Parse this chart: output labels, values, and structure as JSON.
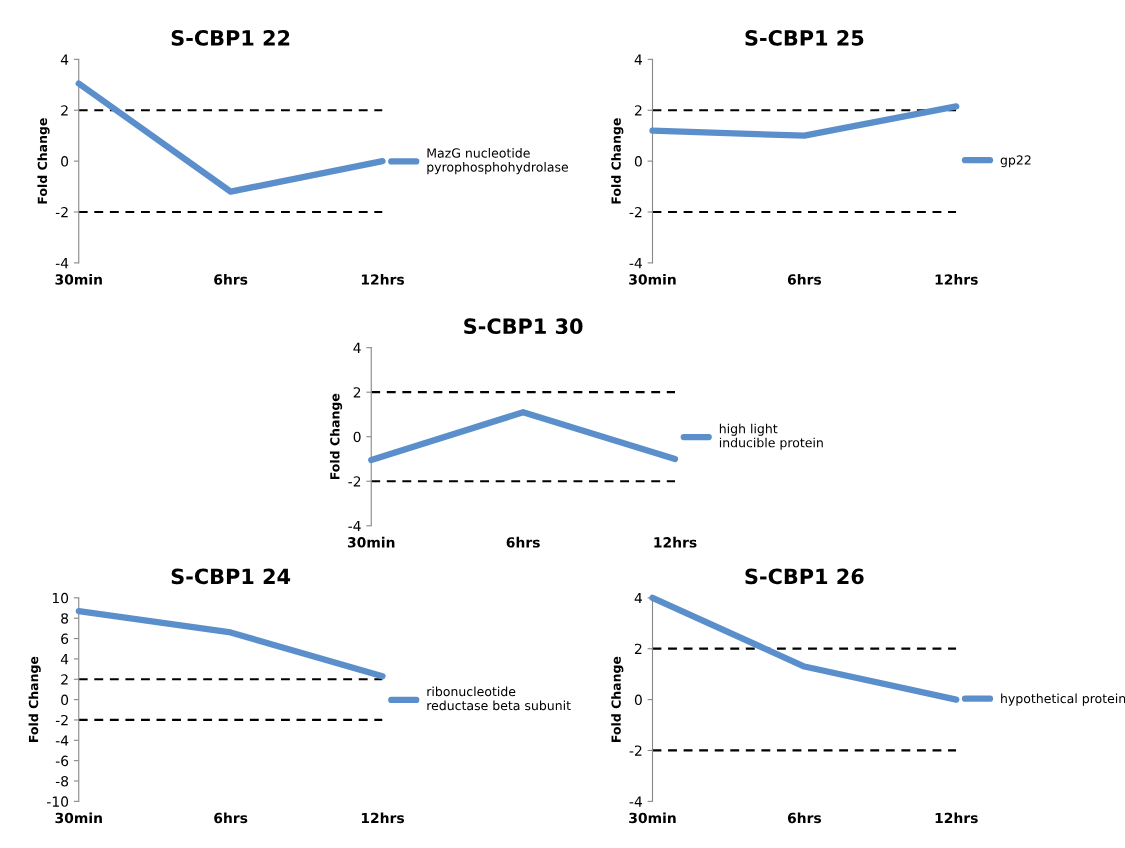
{
  "chart_data": [
    {
      "type": "line",
      "title": "S-CBP1 22",
      "ylabel": "Fold Change",
      "categories": [
        "30min",
        "6hrs",
        "12hrs"
      ],
      "ylim": [
        -4,
        4
      ],
      "yticks": [
        -4,
        -2,
        0,
        2,
        4
      ],
      "grid": false,
      "legend": "right",
      "marker": "none",
      "line_style": "solid",
      "series": [
        {
          "name": "MazG nucleotide pyrophosphohydrolase",
          "color": "#5b8fcc",
          "values": [
            3.05,
            -1.2,
            0.0
          ]
        }
      ],
      "ref_lines": [
        {
          "axis": "y",
          "value": 2,
          "color": "#000000",
          "line_style": "dashed"
        },
        {
          "axis": "y",
          "value": -2,
          "color": "#000000",
          "line_style": "dashed"
        }
      ]
    },
    {
      "type": "line",
      "title": "S-CBP1 25",
      "ylabel": "Fold Change",
      "categories": [
        "30min",
        "6hrs",
        "12hrs"
      ],
      "ylim": [
        -4,
        4
      ],
      "yticks": [
        -4,
        -2,
        0,
        2,
        4
      ],
      "grid": false,
      "legend": "right",
      "marker": "none",
      "line_style": "solid",
      "series": [
        {
          "name": "gp22",
          "color": "#5b8fcc",
          "values": [
            1.2,
            1.0,
            2.15
          ]
        }
      ],
      "ref_lines": [
        {
          "axis": "y",
          "value": 2,
          "color": "#000000",
          "line_style": "dashed"
        },
        {
          "axis": "y",
          "value": -2,
          "color": "#000000",
          "line_style": "dashed"
        }
      ]
    },
    {
      "type": "line",
      "title": "S-CBP1 30",
      "ylabel": "Fold Change",
      "categories": [
        "30min",
        "6hrs",
        "12hrs"
      ],
      "ylim": [
        -4,
        4
      ],
      "yticks": [
        -4,
        -2,
        0,
        2,
        4
      ],
      "grid": false,
      "legend": "right",
      "marker": "none",
      "line_style": "solid",
      "series": [
        {
          "name": "high light inducible protein",
          "color": "#5b8fcc",
          "values": [
            -1.05,
            1.1,
            -1.0
          ]
        }
      ],
      "ref_lines": [
        {
          "axis": "y",
          "value": 2,
          "color": "#000000",
          "line_style": "dashed"
        },
        {
          "axis": "y",
          "value": -2,
          "color": "#000000",
          "line_style": "dashed"
        }
      ]
    },
    {
      "type": "line",
      "title": "S-CBP1 24",
      "ylabel": "Fold Change",
      "categories": [
        "30min",
        "6hrs",
        "12hrs"
      ],
      "ylim": [
        -10,
        10
      ],
      "yticks": [
        -10,
        -8,
        -6,
        -4,
        -2,
        0,
        2,
        4,
        6,
        8,
        10
      ],
      "grid": false,
      "legend": "right",
      "marker": "none",
      "line_style": "solid",
      "series": [
        {
          "name": "ribonucleotide reductase beta subunit",
          "color": "#5b8fcc",
          "values": [
            8.7,
            6.6,
            2.3
          ]
        }
      ],
      "ref_lines": [
        {
          "axis": "y",
          "value": 2,
          "color": "#000000",
          "line_style": "dashed"
        },
        {
          "axis": "y",
          "value": -2,
          "color": "#000000",
          "line_style": "dashed"
        }
      ]
    },
    {
      "type": "line",
      "title": "S-CBP1 26",
      "ylabel": "Fold Change",
      "categories": [
        "30min",
        "6hrs",
        "12hrs"
      ],
      "ylim": [
        -4,
        4
      ],
      "yticks": [
        -4,
        -2,
        0,
        2,
        4
      ],
      "grid": false,
      "legend": "right",
      "marker": "none",
      "line_style": "solid",
      "series": [
        {
          "name": "hypothetical protein",
          "color": "#5b8fcc",
          "values": [
            4.0,
            1.3,
            0.0
          ]
        }
      ],
      "ref_lines": [
        {
          "axis": "y",
          "value": 2,
          "color": "#000000",
          "line_style": "dashed"
        },
        {
          "axis": "y",
          "value": -2,
          "color": "#000000",
          "line_style": "dashed"
        }
      ]
    }
  ]
}
